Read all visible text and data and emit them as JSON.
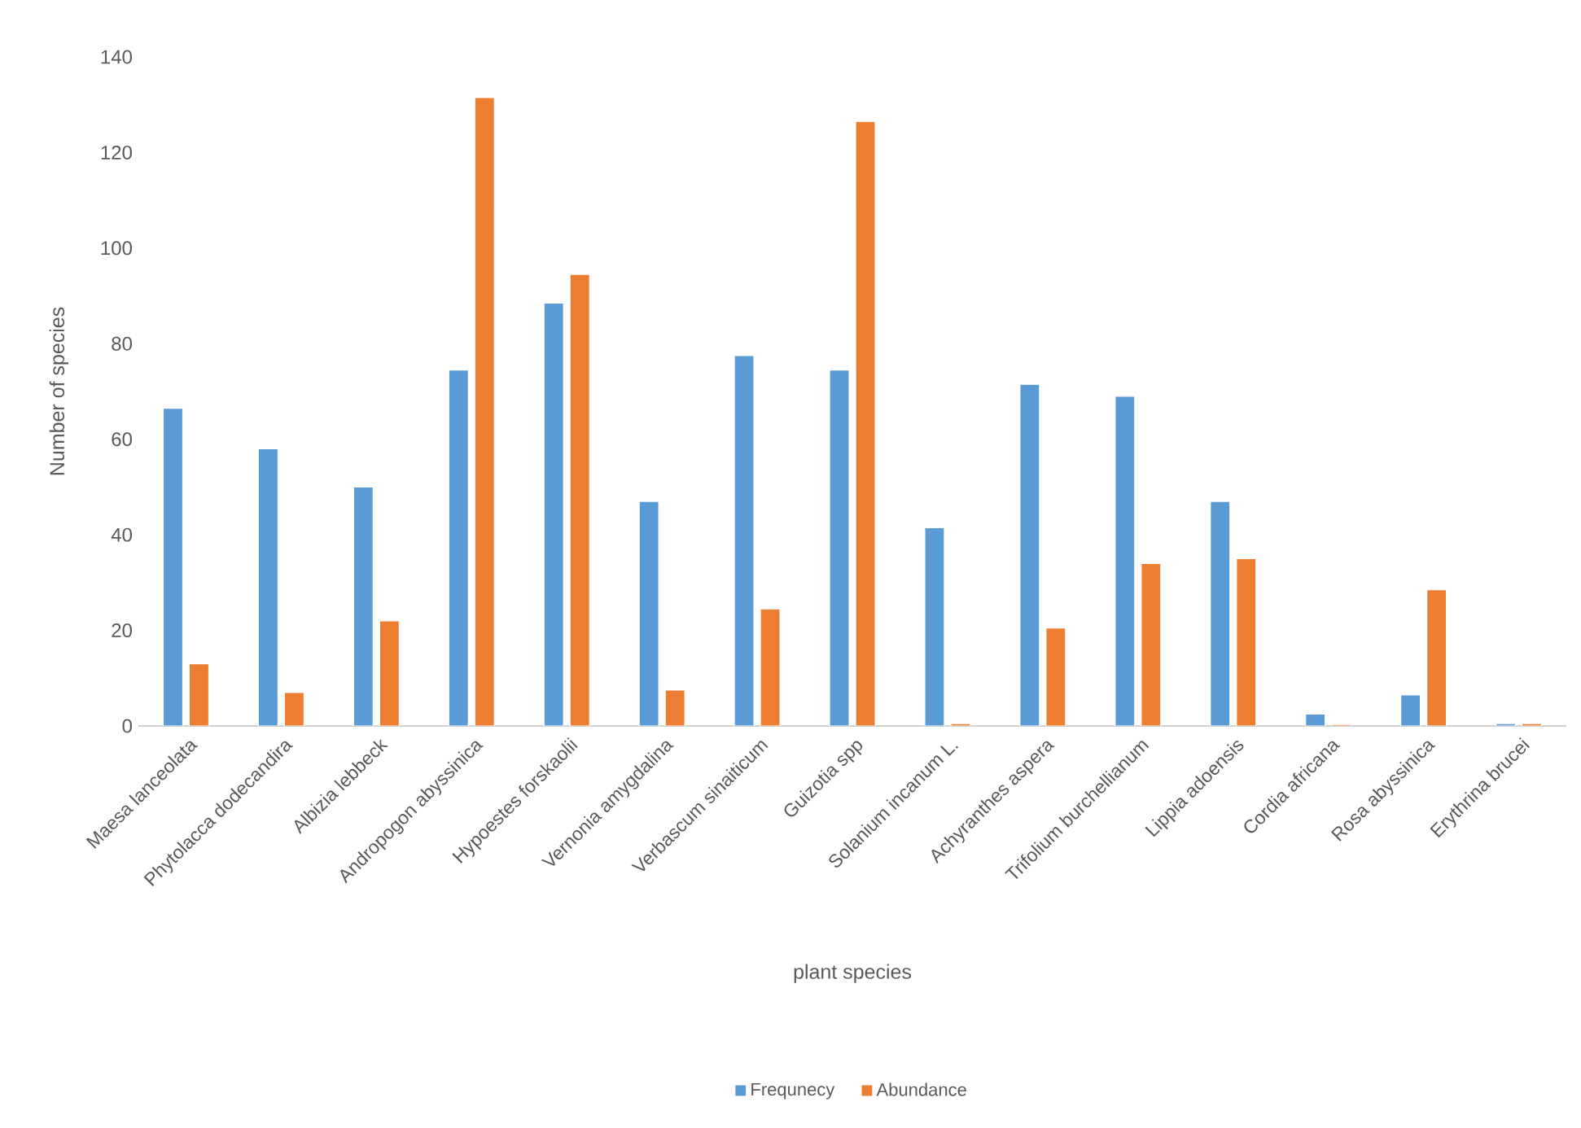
{
  "chart_data": {
    "type": "bar",
    "xlabel": "plant species",
    "ylabel": "Number of species",
    "categories": [
      "Maesa lanceolata",
      "Phytolacca dodecandira",
      "Albizia lebbeck",
      "Andropogon abyssinica",
      "Hypoestes forskaolii",
      "Vernonia amygdalina",
      "Verbascum sinaiticum",
      "Guizotia spp",
      "Solanium incanum L.",
      "Achyranthes aspera",
      "Trifolium burchellianum",
      "Lippia adoensis",
      "Cordia africana",
      "Rosa abyssinica",
      "Erythrina brucei"
    ],
    "series": [
      {
        "name": "Frequnecy",
        "color": "#5b9bd5",
        "values": [
          66.5,
          58,
          50,
          74.5,
          88.5,
          47,
          77.5,
          74.5,
          41.5,
          71.5,
          69,
          47,
          2.5,
          6.5,
          0.5
        ]
      },
      {
        "name": "Abundance",
        "color": "#ed7d31",
        "values": [
          13,
          7,
          22,
          131.5,
          94.5,
          7.5,
          24.5,
          126.5,
          0.5,
          20.5,
          34,
          35,
          0.3,
          28.5,
          0.5
        ]
      }
    ],
    "ylim": [
      0,
      140
    ],
    "yticks": [
      0,
      20,
      40,
      60,
      80,
      100,
      120,
      140
    ],
    "grid": false,
    "legend": "bottom"
  }
}
